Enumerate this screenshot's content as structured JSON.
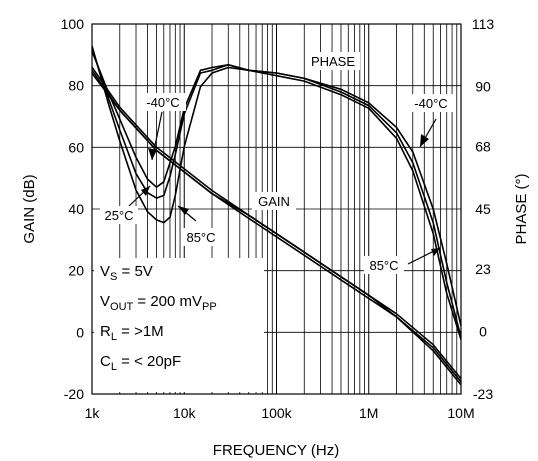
{
  "chart_data": {
    "type": "line",
    "title": "",
    "xlabel": "FREQUENCY (Hz)",
    "ylabel": "GAIN (dB)",
    "y2label": "PHASE (°)",
    "xscale": "log",
    "xlim": [
      1000,
      10000000
    ],
    "ylim": [
      -20,
      100
    ],
    "y2lim": [
      -23,
      113
    ],
    "grid": true,
    "x_ticks": [
      {
        "value": 1000,
        "label": "1k"
      },
      {
        "value": 10000,
        "label": "10k"
      },
      {
        "value": 100000,
        "label": "100k"
      },
      {
        "value": 1000000,
        "label": "1M"
      },
      {
        "value": 10000000,
        "label": "10M"
      }
    ],
    "y_ticks": [
      {
        "value": -20,
        "label": "-20"
      },
      {
        "value": 0,
        "label": "0"
      },
      {
        "value": 20,
        "label": "20"
      },
      {
        "value": 40,
        "label": "40"
      },
      {
        "value": 60,
        "label": "60"
      },
      {
        "value": 80,
        "label": "80"
      },
      {
        "value": 100,
        "label": "100"
      }
    ],
    "y2_ticks": [
      {
        "value": -23,
        "label": "-23"
      },
      {
        "value": 0,
        "label": "0"
      },
      {
        "value": 23,
        "label": "23"
      },
      {
        "value": 45,
        "label": "45"
      },
      {
        "value": 68,
        "label": "68"
      },
      {
        "value": 90,
        "label": "90"
      },
      {
        "value": 113,
        "label": "113"
      }
    ],
    "curve_labels": {
      "phase": "PHASE",
      "gain": "GAIN",
      "t_minus40_top": "-40°C",
      "t_25": "25°C",
      "t_85_low": "85°C",
      "t_minus40_right": "-40°C",
      "t_85_right": "85°C"
    },
    "conditions": [
      {
        "main": "V",
        "sub": "S",
        "rest": " = 5V",
        "sub2": ""
      },
      {
        "main": "V",
        "sub": "OUT",
        "rest": " = 200 mV",
        "sub2": "PP"
      },
      {
        "main": "R",
        "sub": "L",
        "rest": " = >1M",
        "sub2": ""
      },
      {
        "main": "C",
        "sub": "L",
        "rest": " = < 20pF",
        "sub2": ""
      }
    ],
    "series": [
      {
        "group": "gain",
        "temp": "-40°C",
        "axis": "left",
        "x": [
          1000,
          2000,
          5000,
          10000,
          20000,
          50000,
          100000,
          200000,
          500000,
          1000000,
          2000000,
          5000000,
          10000000
        ],
        "y": [
          86,
          73,
          60,
          53,
          46,
          38,
          32,
          26,
          18,
          12,
          6,
          -4,
          -15
        ]
      },
      {
        "group": "gain",
        "temp": "25°C",
        "axis": "left",
        "x": [
          1000,
          2000,
          5000,
          10000,
          20000,
          50000,
          100000,
          200000,
          500000,
          1000000,
          2000000,
          5000000,
          10000000
        ],
        "y": [
          85,
          72,
          59,
          52,
          45,
          38,
          32,
          26,
          18,
          12,
          5,
          -5,
          -16
        ]
      },
      {
        "group": "gain",
        "temp": "85°C",
        "axis": "left",
        "x": [
          1000,
          2000,
          5000,
          10000,
          20000,
          50000,
          100000,
          200000,
          500000,
          1000000,
          2000000,
          5000000,
          10000000
        ],
        "y": [
          84,
          72,
          59,
          52,
          45,
          37,
          31,
          25,
          17,
          11,
          5,
          -6,
          -17
        ]
      },
      {
        "group": "phase",
        "temp": "-40°C",
        "axis": "right",
        "x": [
          1000,
          1500,
          2000,
          3000,
          4000,
          5000,
          6000,
          8000,
          10000,
          15000,
          20000,
          30000,
          50000,
          100000,
          200000,
          500000,
          1000000,
          2000000,
          3000000,
          5000000,
          7000000,
          10000000
        ],
        "y": [
          103,
          88,
          78,
          64,
          56,
          53,
          55,
          68,
          82,
          96,
          97,
          98,
          96,
          95,
          93,
          89,
          84,
          75,
          66,
          45,
          25,
          2
        ]
      },
      {
        "group": "phase",
        "temp": "25°C",
        "axis": "right",
        "x": [
          1000,
          1500,
          2000,
          3000,
          4000,
          5000,
          6000,
          7000,
          8000,
          10000,
          15000,
          20000,
          30000,
          50000,
          100000,
          200000,
          500000,
          1000000,
          2000000,
          3000000,
          5000000,
          7000000,
          10000000
        ],
        "y": [
          104,
          86,
          74,
          58,
          51,
          49,
          50,
          57,
          65,
          80,
          95,
          96,
          98,
          96,
          95,
          93,
          88,
          83,
          73,
          62,
          40,
          18,
          -2
        ]
      },
      {
        "group": "phase",
        "temp": "85°C",
        "axis": "right",
        "x": [
          1000,
          1500,
          2000,
          3000,
          4000,
          5000,
          6000,
          7000,
          8000,
          10000,
          15000,
          20000,
          30000,
          50000,
          100000,
          200000,
          500000,
          1000000,
          2000000,
          3000000,
          5000000,
          7000000,
          10000000
        ],
        "y": [
          105,
          84,
          70,
          52,
          44,
          41,
          40,
          42,
          50,
          68,
          90,
          95,
          97,
          96,
          94,
          92,
          87,
          82,
          71,
          59,
          36,
          14,
          -3
        ]
      }
    ]
  }
}
